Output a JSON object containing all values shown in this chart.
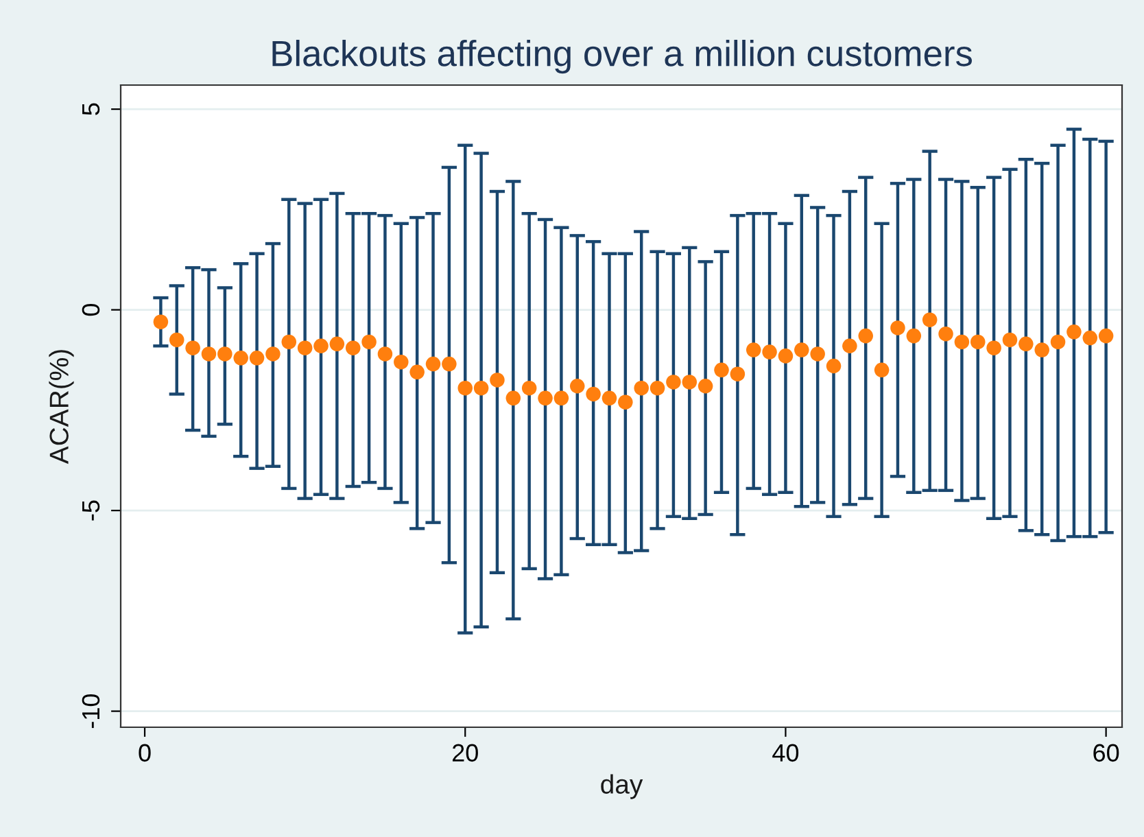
{
  "chart_data": {
    "type": "scatter",
    "title": "Blackouts affecting over a million customers",
    "xlabel": "day",
    "ylabel": "ACAR(%)",
    "x": [
      1,
      2,
      3,
      4,
      5,
      6,
      7,
      8,
      9,
      10,
      11,
      12,
      13,
      14,
      15,
      16,
      17,
      18,
      19,
      20,
      21,
      22,
      23,
      24,
      25,
      26,
      27,
      28,
      29,
      30,
      31,
      32,
      33,
      34,
      35,
      36,
      37,
      38,
      39,
      40,
      41,
      42,
      43,
      44,
      45,
      46,
      47,
      48,
      49,
      50,
      51,
      52,
      53,
      54,
      55,
      56,
      57,
      58,
      59,
      60
    ],
    "series": [
      {
        "color": "#ff7f0e",
        "values": [
          -0.3,
          -0.75,
          -0.95,
          -1.1,
          -1.1,
          -1.2,
          -1.2,
          -1.1,
          -0.8,
          -0.95,
          -0.9,
          -0.85,
          -0.95,
          -0.8,
          -1.1,
          -1.3,
          -1.55,
          -1.35,
          -1.35,
          -1.95,
          -1.95,
          -1.75,
          -2.2,
          -1.95,
          -2.2,
          -2.2,
          -1.9,
          -2.1,
          -2.2,
          -2.3,
          -1.95,
          -1.95,
          -1.8,
          -1.8,
          -1.9,
          -1.5,
          -1.6,
          -1.0,
          -1.05,
          -1.15,
          -1.0,
          -1.1,
          -1.4,
          -0.9,
          -0.65,
          -1.5,
          -0.45,
          -0.65,
          -0.25,
          -0.6,
          -0.8,
          -0.8,
          -0.95,
          -0.75,
          -0.85,
          -1.0,
          -0.8,
          -0.55,
          -0.7,
          -0.65
        ],
        "errors": [
          [
            -0.9,
            0.3
          ],
          [
            -2.1,
            0.6
          ],
          [
            -3.0,
            1.05
          ],
          [
            -3.15,
            1.0
          ],
          [
            -2.85,
            0.55
          ],
          [
            -3.65,
            1.15
          ],
          [
            -3.95,
            1.4
          ],
          [
            -3.9,
            1.65
          ],
          [
            -4.45,
            2.75
          ],
          [
            -4.7,
            2.65
          ],
          [
            -4.6,
            2.75
          ],
          [
            -4.7,
            2.9
          ],
          [
            -4.4,
            2.4
          ],
          [
            -4.3,
            2.4
          ],
          [
            -4.45,
            2.35
          ],
          [
            -4.8,
            2.15
          ],
          [
            -5.45,
            2.3
          ],
          [
            -5.3,
            2.4
          ],
          [
            -6.3,
            3.55
          ],
          [
            -8.05,
            4.1
          ],
          [
            -7.9,
            3.9
          ],
          [
            -6.55,
            2.95
          ],
          [
            -7.7,
            3.2
          ],
          [
            -6.45,
            2.4
          ],
          [
            -6.7,
            2.25
          ],
          [
            -6.6,
            2.05
          ],
          [
            -5.7,
            1.85
          ],
          [
            -5.85,
            1.7
          ],
          [
            -5.85,
            1.4
          ],
          [
            -6.05,
            1.4
          ],
          [
            -6.0,
            1.95
          ],
          [
            -5.45,
            1.45
          ],
          [
            -5.15,
            1.4
          ],
          [
            -5.2,
            1.55
          ],
          [
            -5.1,
            1.2
          ],
          [
            -4.55,
            1.45
          ],
          [
            -5.6,
            2.35
          ],
          [
            -4.45,
            2.4
          ],
          [
            -4.6,
            2.4
          ],
          [
            -4.55,
            2.15
          ],
          [
            -4.9,
            2.85
          ],
          [
            -4.8,
            2.55
          ],
          [
            -5.15,
            2.35
          ],
          [
            -4.85,
            2.95
          ],
          [
            -4.7,
            3.3
          ],
          [
            -5.15,
            2.15
          ],
          [
            -4.15,
            3.15
          ],
          [
            -4.55,
            3.25
          ],
          [
            -4.5,
            3.95
          ],
          [
            -4.5,
            3.25
          ],
          [
            -4.75,
            3.2
          ],
          [
            -4.7,
            3.05
          ],
          [
            -5.2,
            3.3
          ],
          [
            -5.15,
            3.5
          ],
          [
            -5.5,
            3.75
          ],
          [
            -5.6,
            3.65
          ],
          [
            -5.75,
            4.1
          ],
          [
            -5.65,
            4.5
          ],
          [
            -5.65,
            4.25
          ],
          [
            -5.55,
            4.2
          ]
        ]
      }
    ],
    "xlim": [
      -1.5,
      61
    ],
    "ylim": [
      -10.4,
      5.6
    ],
    "xticks": [
      0,
      20,
      40,
      60
    ],
    "yticks": [
      -10,
      -5,
      0,
      5
    ],
    "grid": "y",
    "marker": "circle",
    "legend": false
  }
}
